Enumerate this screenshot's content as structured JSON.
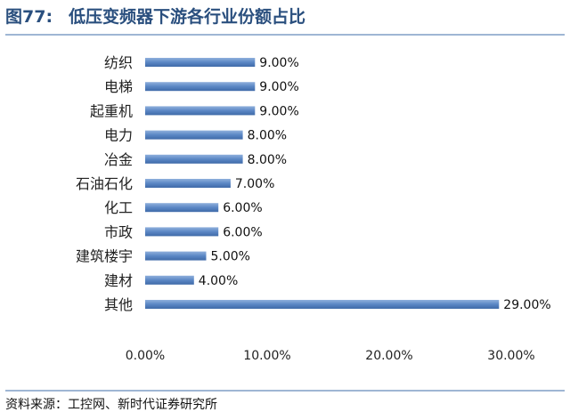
{
  "header": {
    "figure_no": "图77:",
    "title": "低压变频器下游各行业份额占比"
  },
  "footer": {
    "source": "资料来源：工控网、新时代证券研究所"
  },
  "chart_data": {
    "type": "bar",
    "orientation": "horizontal",
    "categories": [
      "纺织",
      "电梯",
      "起重机",
      "电力",
      "冶金",
      "石油石化",
      "化工",
      "市政",
      "建筑楼宇",
      "建材",
      "其他"
    ],
    "values": [
      9,
      9,
      9,
      8,
      8,
      7,
      6,
      6,
      5,
      4,
      29
    ],
    "value_labels": [
      "9.00%",
      "9.00%",
      "9.00%",
      "8.00%",
      "8.00%",
      "7.00%",
      "6.00%",
      "6.00%",
      "5.00%",
      "4.00%",
      "29.00%"
    ],
    "xlim": [
      0,
      30
    ],
    "xticks": [
      0,
      10,
      20,
      30
    ],
    "xtick_labels": [
      "0.00%",
      "10.00%",
      "20.00%",
      "30.00%"
    ],
    "grid": false,
    "legend": false,
    "bar_color": "#5b87c5"
  }
}
